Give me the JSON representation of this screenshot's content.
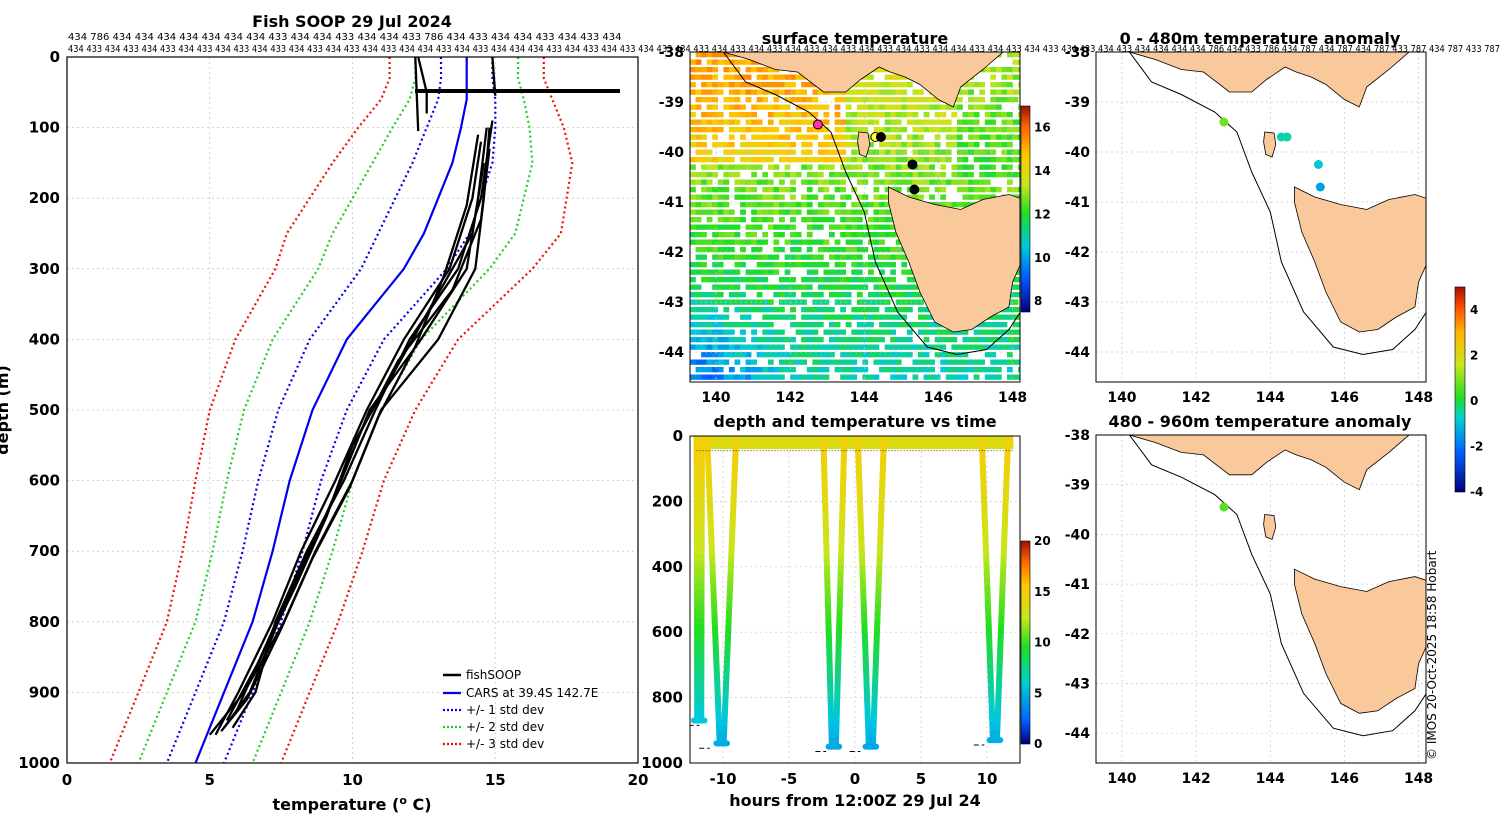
{
  "colors": {
    "profile": "#000000",
    "cars": "#0000ee",
    "sd1": "#0000ee",
    "sd2": "#22cc22",
    "sd3": "#ee1100",
    "land": "#f9c89b",
    "grid": "#c8c8c8"
  },
  "chart_data": [
    {
      "type": "line",
      "title": "Fish SOOP 29 Jul 2024",
      "xlabel": "temperature (",
      "xlabel_unit": "o",
      "xlabel_tail": " C)",
      "ylabel": "depth (m)",
      "xlim": [
        0,
        20
      ],
      "ylim": [
        1000,
        0
      ],
      "xticks": [
        0,
        5,
        10,
        15,
        20
      ],
      "yticks": [
        0,
        100,
        200,
        300,
        400,
        500,
        600,
        700,
        800,
        900,
        1000
      ],
      "id_rows": [
        "434 786 434 434 434 434 434 434 434 433 434 434 433 434 434 433 786 434 433 434 434 433 434 433 434",
        "434 433 434 433 434 433 434 433 434 433 434 433 434 433 434 433 434 433 434 434 433 434 433 434 434 434 433 434 433 434 433 434 433 434 433 434 433 434 433 434 433 434 433 434 433 434 433 434 434 433 434 433 434 433 434 433 434 433 434 434 434 434 786 434 433 786 434 787 434 787 434 787 433 787 434 787 433 787"
      ],
      "legend": [
        "fishSOOP",
        "CARS at 39.4S 142.7E",
        "+/- 1 std dev",
        "+/- 2 std dev",
        "+/- 3 std dev"
      ],
      "reference": {
        "depth": [
          0,
          30,
          60,
          100,
          150,
          200,
          250,
          300,
          350,
          400,
          500,
          600,
          700,
          800,
          900,
          1000
        ],
        "cars": [
          14.0,
          14.0,
          14.0,
          13.8,
          13.5,
          13.0,
          12.5,
          11.8,
          10.8,
          9.8,
          8.6,
          7.8,
          7.2,
          6.5,
          5.5,
          4.5
        ],
        "half_width_1sd": [
          0.9,
          0.9,
          1.0,
          1.2,
          1.4,
          1.5,
          1.6,
          1.5,
          1.4,
          1.3,
          1.2,
          1.1,
          1.05,
          1.0,
          1.0,
          1.0
        ],
        "half_width_2sd": [
          1.8,
          1.8,
          2.0,
          2.4,
          2.8,
          3.0,
          3.2,
          3.0,
          2.8,
          2.6,
          2.4,
          2.2,
          2.1,
          2.0,
          2.0,
          2.0
        ],
        "half_width_3sd": [
          2.7,
          2.7,
          3.0,
          3.6,
          4.2,
          4.5,
          4.8,
          4.5,
          4.2,
          3.9,
          3.6,
          3.3,
          3.15,
          3.0,
          3.0,
          3.0
        ]
      },
      "profiles": [
        {
          "depth": [
            100,
            200,
            300,
            400,
            500,
            600,
            700,
            800,
            900,
            960
          ],
          "temp": [
            14.8,
            14.6,
            14.3,
            13.0,
            11.0,
            10.0,
            8.7,
            7.6,
            6.2,
            5.0
          ]
        },
        {
          "depth": [
            100,
            200,
            300,
            400,
            500,
            600,
            700,
            800,
            900,
            950
          ],
          "temp": [
            14.7,
            14.4,
            14.0,
            12.4,
            10.6,
            9.6,
            8.5,
            7.4,
            6.4,
            5.5
          ]
        },
        {
          "depth": [
            90,
            200,
            300,
            400,
            500,
            600,
            700,
            800,
            900,
            950
          ],
          "temp": [
            14.9,
            14.5,
            13.7,
            12.0,
            10.8,
            9.7,
            8.4,
            7.3,
            6.6,
            5.8
          ]
        },
        {
          "depth": [
            120,
            200,
            300,
            400,
            500,
            600,
            700,
            800,
            900,
            960
          ],
          "temp": [
            14.5,
            14.2,
            13.4,
            11.8,
            10.5,
            9.4,
            8.2,
            7.2,
            6.0,
            5.2
          ]
        },
        {
          "depth": [
            150,
            250,
            350,
            450,
            550,
            650,
            750,
            850,
            940
          ],
          "temp": [
            14.6,
            14.2,
            12.8,
            11.4,
            10.0,
            9.1,
            8.0,
            6.8,
            5.6
          ]
        },
        {
          "depth": [
            110,
            210,
            310,
            410,
            510,
            610,
            710,
            810,
            910,
            955
          ],
          "temp": [
            14.4,
            14.0,
            13.2,
            12.2,
            10.9,
            9.9,
            8.6,
            7.5,
            6.3,
            5.4
          ]
        },
        {
          "depth": [
            130,
            230,
            330,
            430,
            530,
            630,
            730,
            830,
            930
          ],
          "temp": [
            14.8,
            14.5,
            13.5,
            11.6,
            10.3,
            9.3,
            8.1,
            7.0,
            5.9
          ]
        },
        {
          "depth": [
            0,
            50,
            80
          ],
          "temp": [
            12.3,
            12.6,
            12.6
          ]
        },
        {
          "depth": [
            0,
            55
          ],
          "temp": [
            14.9,
            15.0
          ]
        },
        {
          "depth": [
            0,
            105
          ],
          "temp": [
            12.2,
            12.3
          ]
        }
      ]
    },
    {
      "type": "heatmap",
      "title": "surface temperature",
      "xlim": [
        139.3,
        148.2
      ],
      "ylim": [
        -44.6,
        -38.0
      ],
      "xticks": [
        140,
        142,
        144,
        146,
        148
      ],
      "yticks": [
        -38,
        -39,
        -40,
        -41,
        -42,
        -43,
        -44
      ],
      "colorbar": {
        "min": 7.5,
        "max": 17,
        "ticks": [
          8,
          10,
          12,
          14,
          16
        ]
      },
      "markers": [
        {
          "lon": 142.75,
          "lat": -39.45,
          "color": "#ff33aa"
        },
        {
          "lon": 144.3,
          "lat": -39.7,
          "color": "#ffff33"
        },
        {
          "lon": 144.45,
          "lat": -39.7,
          "color": "#000000"
        },
        {
          "lon": 145.3,
          "lat": -40.25,
          "color": "#000000"
        },
        {
          "lon": 145.35,
          "lat": -40.75,
          "color": "#000000"
        }
      ]
    },
    {
      "type": "scatter",
      "title": "depth and temperature vs time",
      "xlabel": "hours from 12:00Z 29 Jul 24",
      "xlim": [
        -12.5,
        12.5
      ],
      "ylim": [
        1000,
        0
      ],
      "xticks": [
        -10,
        -5,
        0,
        5,
        10
      ],
      "yticks": [
        0,
        200,
        400,
        600,
        800,
        1000
      ],
      "colorbar": {
        "min": 0,
        "max": 20,
        "ticks": [
          0,
          5,
          10,
          15,
          20
        ]
      },
      "dives": [
        {
          "t_start": -12.0,
          "t_end": -11.6,
          "max_depth": 870
        },
        {
          "t_start": -11.2,
          "t_end": -9.0,
          "max_depth": 940
        },
        {
          "t_start": -2.4,
          "t_end": -0.8,
          "max_depth": 950
        },
        {
          "t_start": 0.2,
          "t_end": 2.2,
          "max_depth": 950
        },
        {
          "t_start": 9.6,
          "t_end": 11.6,
          "max_depth": 930
        }
      ]
    },
    {
      "type": "scatter",
      "title": "0 - 480m temperature anomaly",
      "xlim": [
        139.3,
        148.2
      ],
      "ylim": [
        -44.6,
        -38.0
      ],
      "xticks": [
        140,
        142,
        144,
        146,
        148
      ],
      "yticks": [
        -38,
        -39,
        -40,
        -41,
        -42,
        -43,
        -44
      ],
      "points": [
        {
          "lon": 142.75,
          "lat": -39.4,
          "anomaly": 0.8
        },
        {
          "lon": 144.3,
          "lat": -39.7,
          "anomaly": -0.6
        },
        {
          "lon": 144.45,
          "lat": -39.7,
          "anomaly": -0.5
        },
        {
          "lon": 145.3,
          "lat": -40.25,
          "anomaly": -0.9
        },
        {
          "lon": 145.35,
          "lat": -40.7,
          "anomaly": -1.4
        }
      ]
    },
    {
      "type": "scatter",
      "title": "480 - 960m temperature anomaly",
      "xlim": [
        139.3,
        148.2
      ],
      "ylim": [
        -44.6,
        -38.0
      ],
      "xticks": [
        140,
        142,
        144,
        146,
        148
      ],
      "yticks": [
        -38,
        -39,
        -40,
        -41,
        -42,
        -43,
        -44
      ],
      "points": [
        {
          "lon": 142.75,
          "lat": -39.45,
          "anomaly": 0.6
        }
      ],
      "colorbar": {
        "min": -4,
        "max": 5,
        "ticks": [
          -4,
          -2,
          0,
          2,
          4
        ]
      }
    }
  ],
  "credit": "© IMOS 20-Oct-2025 18:58 Hobart"
}
